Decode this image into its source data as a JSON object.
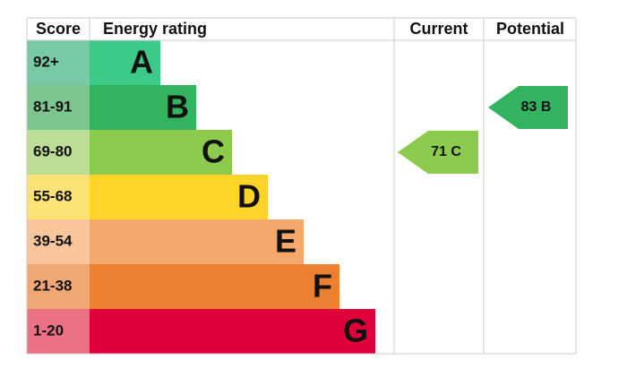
{
  "header": {
    "score": "Score",
    "rating": "Energy rating",
    "current": "Current",
    "potential": "Potential"
  },
  "rows": [
    {
      "score": "92+",
      "rating": "A",
      "color": "#3dc987",
      "score_color": "#78c9a6"
    },
    {
      "score": "81-91",
      "rating": "B",
      "color": "#33b35f",
      "score_color": "#7cc58e",
      "potential": "83 B"
    },
    {
      "score": "69-80",
      "rating": "C",
      "color": "#8dcb4f",
      "score_color": "#bbdd95",
      "current": "71 C"
    },
    {
      "score": "55-68",
      "rating": "D",
      "color": "#fed429",
      "score_color": "#fde376"
    },
    {
      "score": "39-54",
      "rating": "E",
      "color": "#f5a86c",
      "score_color": "#f8c59d"
    },
    {
      "score": "21-38",
      "rating": "F",
      "color": "#ec8031",
      "score_color": "#f0a774"
    },
    {
      "score": "1-20",
      "rating": "G",
      "color": "#df003b",
      "score_color": "#eb7185"
    }
  ]
}
